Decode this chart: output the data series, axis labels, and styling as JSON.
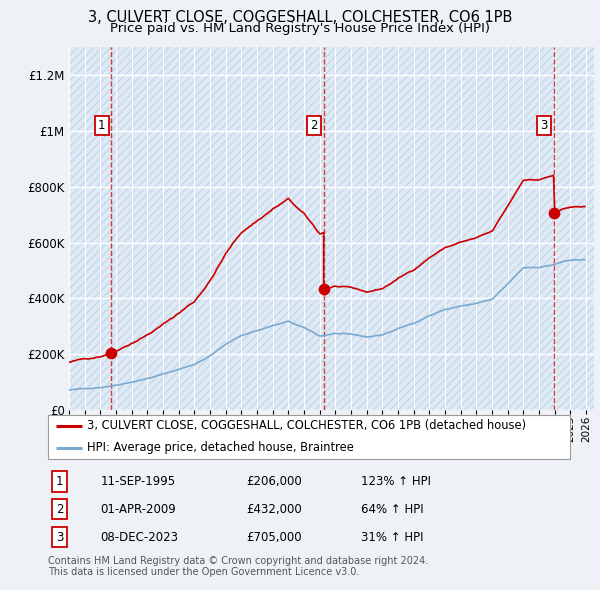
{
  "title": "3, CULVERT CLOSE, COGGESHALL, COLCHESTER, CO6 1PB",
  "subtitle": "Price paid vs. HM Land Registry's House Price Index (HPI)",
  "ylim": [
    0,
    1300000
  ],
  "xlim_start": 1993.0,
  "xlim_end": 2026.5,
  "yticks": [
    0,
    200000,
    400000,
    600000,
    800000,
    1000000,
    1200000
  ],
  "ytick_labels": [
    "£0",
    "£200K",
    "£400K",
    "£600K",
    "£800K",
    "£1M",
    "£1.2M"
  ],
  "background_color": "#eef2f7",
  "plot_bg_color": "#e0eaf5",
  "sale_color": "#cc0000",
  "hpi_color": "#7aaad0",
  "sale_points": [
    {
      "date": 1995.69,
      "price": 206000,
      "label": "1"
    },
    {
      "date": 2009.25,
      "price": 432000,
      "label": "2"
    },
    {
      "date": 2023.93,
      "price": 705000,
      "label": "3"
    }
  ],
  "legend_sale_label": "3, CULVERT CLOSE, COGGESHALL, COLCHESTER, CO6 1PB (detached house)",
  "legend_hpi_label": "HPI: Average price, detached house, Braintree",
  "table_entries": [
    {
      "num": "1",
      "date": "11-SEP-1995",
      "price": "£206,000",
      "change": "123% ↑ HPI"
    },
    {
      "num": "2",
      "date": "01-APR-2009",
      "price": "£432,000",
      "change": "64% ↑ HPI"
    },
    {
      "num": "3",
      "date": "08-DEC-2023",
      "price": "£705,000",
      "change": "31% ↑ HPI"
    }
  ],
  "footnote": "Contains HM Land Registry data © Crown copyright and database right 2024.\nThis data is licensed under the Open Government Licence v3.0."
}
